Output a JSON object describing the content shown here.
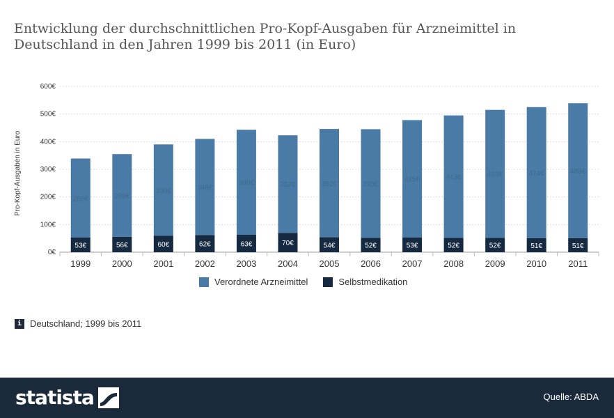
{
  "title": "Entwicklung der durchschnittlichen Pro-Kopf-Ausgaben für Arzneimittel in Deutschland in den Jahren 1999 bis 2011 (in Euro)",
  "note": "Deutschland; 1999 bis 2011",
  "brand": "statista",
  "source": "Quelle: ABDA",
  "colors": {
    "verordnete": "#4a7ba7",
    "selbstmedikation": "#152a41"
  },
  "chart_data": {
    "type": "bar",
    "stacked": true,
    "categories": [
      "1999",
      "2000",
      "2001",
      "2002",
      "2003",
      "2004",
      "2005",
      "2006",
      "2007",
      "2008",
      "2009",
      "2010",
      "2011"
    ],
    "series": [
      {
        "name": "Selbstmedikation",
        "values": [
          53,
          56,
          60,
          62,
          63,
          70,
          54,
          52,
          53,
          52,
          52,
          51,
          51
        ],
        "labels": [
          "53€",
          "56€",
          "60€",
          "62€",
          "63€",
          "70€",
          "54€",
          "52€",
          "53€",
          "52€",
          "52€",
          "51€",
          "51€"
        ]
      },
      {
        "name": "Verordnete Arzneimittel",
        "values": [
          286,
          299,
          330,
          348,
          380,
          353,
          392,
          393,
          425,
          443,
          463,
          474,
          488
        ],
        "labels": [
          "286€",
          "299€",
          "330€",
          "348€",
          "380€",
          "353€",
          "392€",
          "393€",
          "425€",
          "443€",
          "463€",
          "474€",
          "488€"
        ]
      }
    ],
    "yticks": [
      "0€",
      "100€",
      "200€",
      "300€",
      "400€",
      "500€",
      "600€"
    ],
    "ylabel": "Pro-Kopf-Ausgaben in Euro",
    "ylim": [
      0,
      600
    ],
    "grid": true,
    "legend": "bottom"
  }
}
